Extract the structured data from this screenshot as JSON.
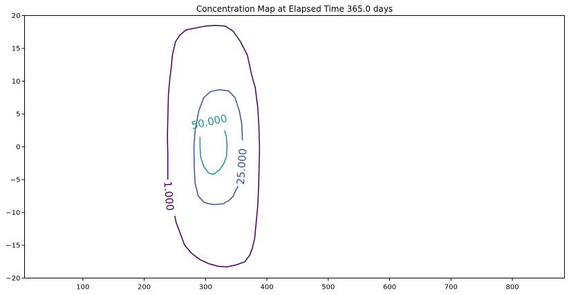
{
  "chart_data": {
    "type": "contour",
    "title": "Concentration Map at Elapsed Time 365.0 days",
    "xlabel": "",
    "ylabel": "",
    "xlim": [
      5,
      885
    ],
    "ylim": [
      -20,
      20
    ],
    "xticks": [
      100,
      200,
      300,
      400,
      500,
      600,
      700,
      800
    ],
    "yticks": [
      -20,
      -15,
      -10,
      -5,
      0,
      5,
      10,
      15,
      20
    ],
    "grid": false,
    "colors": {
      "1": "#440154",
      "25": "#3b528b",
      "50": "#21918c"
    },
    "levels": [
      {
        "level": 1,
        "label": "1.000",
        "label_at": [
          240,
          -7.5
        ],
        "label_rotation": 85,
        "paths": [
          [
            [
              238.5,
              -5.0
            ],
            [
              238.5,
              -1.0
            ],
            [
              237.8,
              1.5
            ],
            [
              238.5,
              4.0
            ],
            [
              239.5,
              8.0
            ],
            [
              242,
              10.5
            ],
            [
              244,
              12.0
            ],
            [
              246,
              14.0
            ],
            [
              251,
              16.0
            ],
            [
              258,
              17.0
            ],
            [
              268,
              17.8
            ],
            [
              283,
              18.1
            ],
            [
              300,
              18.4
            ],
            [
              316,
              18.5
            ],
            [
              332,
              18.4
            ],
            [
              345,
              17.6
            ],
            [
              357,
              16.0
            ],
            [
              368,
              14.0
            ],
            [
              375,
              11.0
            ],
            [
              381,
              9.0
            ],
            [
              385,
              6.0
            ],
            [
              387,
              3.0
            ],
            [
              388,
              0.0
            ],
            [
              387.5,
              -2.0
            ],
            [
              386.5,
              -6.0
            ],
            [
              385,
              -9.0
            ],
            [
              382,
              -12.0
            ],
            [
              380,
              -14.0
            ],
            [
              376,
              -15.5
            ],
            [
              372,
              -16.5
            ],
            [
              364,
              -17.5
            ],
            [
              350,
              -18.0
            ],
            [
              334,
              -18.3
            ],
            [
              320,
              -18.2
            ],
            [
              305,
              -17.8
            ],
            [
              291,
              -17.2
            ],
            [
              277,
              -16.2
            ],
            [
              266,
              -15.0
            ],
            [
              258,
              -13.0
            ],
            [
              252,
              -11.5
            ],
            [
              250,
              -10.5
            ]
          ]
        ]
      },
      {
        "level": 25,
        "label": "25.000",
        "label_at": [
          359,
          -3.0
        ],
        "label_rotation": -86,
        "paths": [
          [
            [
              360,
              1.0
            ],
            [
              359,
              3.5
            ],
            [
              355,
              5.5
            ],
            [
              348,
              7.5
            ],
            [
              338,
              8.5
            ],
            [
              322,
              8.7
            ],
            [
              308,
              8.4
            ],
            [
              297,
              7.5
            ],
            [
              289,
              5.5
            ],
            [
              283,
              2.5
            ],
            [
              281,
              0.0
            ],
            [
              281.5,
              -3.0
            ],
            [
              283,
              -5.5
            ],
            [
              288,
              -7.5
            ],
            [
              298,
              -8.5
            ],
            [
              313,
              -8.8
            ],
            [
              328,
              -8.7
            ],
            [
              338,
              -8.2
            ],
            [
              345,
              -7.5
            ],
            [
              350,
              -6.5
            ],
            [
              353,
              -6.0
            ]
          ]
        ]
      },
      {
        "level": 50,
        "label": "50.000",
        "label_at": [
          306,
          3.8
        ],
        "label_rotation": -12,
        "paths": [
          [
            [
              331,
              2.5
            ],
            [
              334,
              1.5
            ],
            [
              335,
              0.0
            ],
            [
              334,
              -1.5
            ],
            [
              330,
              -2.5
            ],
            [
              323,
              -3.5
            ],
            [
              313,
              -4.2
            ],
            [
              305,
              -4.0
            ],
            [
              297,
              -3.0
            ],
            [
              292,
              -1.5
            ],
            [
              291,
              0.0
            ],
            [
              291,
              1.5
            ]
          ]
        ]
      }
    ]
  }
}
